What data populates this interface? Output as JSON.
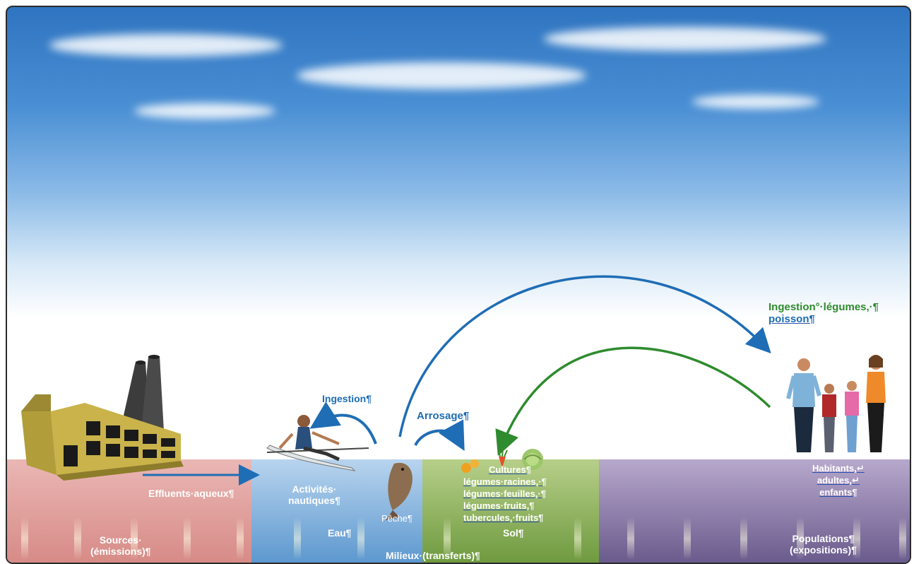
{
  "labels": {
    "effluents": "Effluents·aqueux¶",
    "ingestion_small": "Ingestion¶",
    "arrosage": "Arrosage¶",
    "ingestion_big_1": "Ingestion°·légumes,·¶",
    "ingestion_big_2": "poisson¶",
    "activites_1": "Activités·",
    "activites_2": "nautiques¶",
    "peche": "Pêche¶",
    "cultures": "Cultures¶",
    "leg_racines": "légumes·racines,·¶",
    "leg_feuilles": "légumes·feuilles,·¶",
    "leg_fruits": "légumes·fruits,¶",
    "tubercules": "tubercules,·fruits¶",
    "habitants": "Habitants,↵",
    "adultes": "adultes,↵",
    "enfants": "enfants¶",
    "sources_1": "Sources·",
    "sources_2": "(émissions)¶",
    "eau": "Eau¶",
    "sol": "Sol¶",
    "milieux": "Milieux·(transferts)¶",
    "populations_1": "Populations¶",
    "populations_2": "(expositions)¶"
  },
  "colors": {
    "arrow_blue": "#1f6db5",
    "arrow_green": "#2e8b2e",
    "sources_panel": "#d78b87",
    "eau_panel": "#5d98cf",
    "sol_panel": "#6f9a3f",
    "populations_panel": "#6a5b8d"
  },
  "icons": [
    "factory-icon",
    "rower-icon",
    "fish-icon",
    "carrot-icon",
    "oranges-icon",
    "cabbage-icon",
    "family-icon"
  ]
}
